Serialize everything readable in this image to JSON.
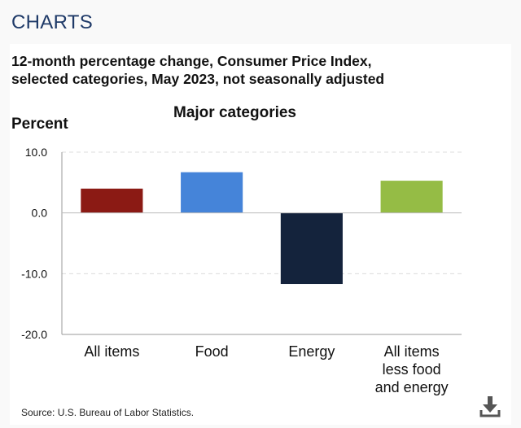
{
  "header": {
    "section_title": "CHARTS"
  },
  "chart_data": {
    "type": "bar",
    "title": "Major categories",
    "subtitle_lines": [
      "12-month percentage change, Consumer Price Index,",
      "selected categories, May 2023, not seasonally adjusted"
    ],
    "xlabel": "",
    "ylabel": "Percent",
    "categories": [
      [
        "All items"
      ],
      [
        "Food"
      ],
      [
        "Energy"
      ],
      [
        "All items",
        "less food",
        "and energy"
      ]
    ],
    "values": [
      4.0,
      6.7,
      -11.7,
      5.3
    ],
    "colors": [
      "#8b1a14",
      "#4584d9",
      "#14233c",
      "#95bc45"
    ],
    "ylim": [
      -20,
      10
    ],
    "yticks": [
      10,
      0,
      -10,
      -20
    ],
    "ytick_labels": [
      "10.0",
      "0.0",
      "-10.0",
      "-20.0"
    ],
    "grid": true
  },
  "footer": {
    "source": "Source: U.S. Bureau of Labor Statistics.",
    "download_icon": "download-icon"
  }
}
